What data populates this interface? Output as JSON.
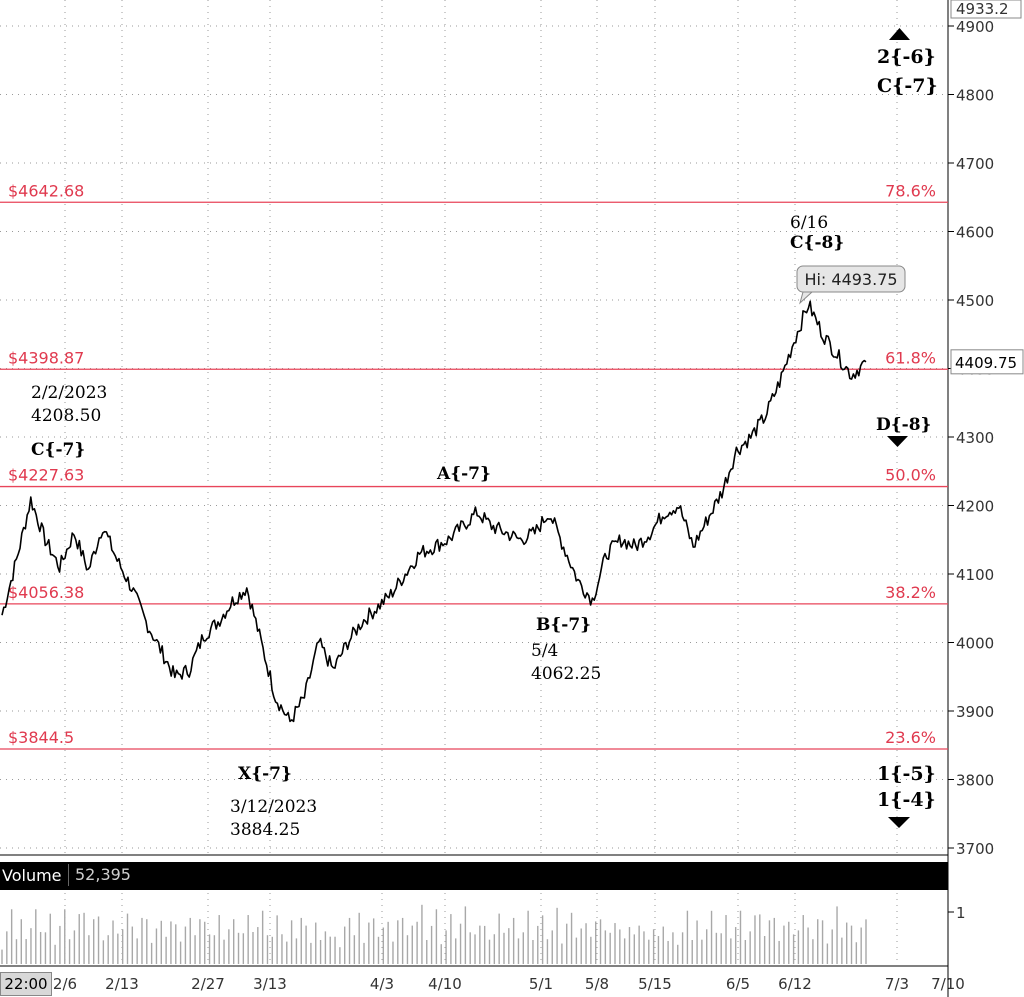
{
  "chart_data": {
    "type": "line",
    "title": "",
    "xlabel": "",
    "ylabel": "",
    "ylim": [
      3690,
      4935
    ],
    "y_ticks": [
      "4900",
      "4800",
      "4700",
      "4600",
      "4500",
      "4400",
      "4300",
      "4200",
      "4100",
      "4000",
      "3900",
      "3800",
      "3700"
    ],
    "x_ticks": [
      "2/6",
      "2/13",
      "2/27",
      "3/13",
      "4/3",
      "4/10",
      "5/1",
      "5/8",
      "5/15",
      "6/5",
      "6/12",
      "7/3",
      "7/10"
    ],
    "top_price": "4933.2",
    "last_price": "4409.75",
    "last_price_value": 4409.75,
    "hi_label": "Hi: 4493.75",
    "fib_levels": [
      {
        "price_label": "$4642.68",
        "pct_label": "78.6%",
        "value": 4642.68
      },
      {
        "price_label": "$4398.87",
        "pct_label": "61.8%",
        "value": 4398.87
      },
      {
        "price_label": "$4227.63",
        "pct_label": "50.0%",
        "value": 4227.63
      },
      {
        "price_label": "$4056.38",
        "pct_label": "38.2%",
        "value": 4056.38
      },
      {
        "price_label": "$3844.5",
        "pct_label": "23.6%",
        "value": 3844.5
      }
    ],
    "annotations": [
      {
        "text": "2/2/2023",
        "bold": false
      },
      {
        "text": "4208.50",
        "bold": false
      },
      {
        "text": "C{-7}",
        "bold": true
      },
      {
        "text": "A{-7}",
        "bold": true
      },
      {
        "text": "B{-7}",
        "bold": true
      },
      {
        "text": "5/4",
        "bold": false
      },
      {
        "text": "4062.25",
        "bold": false
      },
      {
        "text": "X{-7}",
        "bold": true
      },
      {
        "text": "3/12/2023",
        "bold": false
      },
      {
        "text": "3884.25",
        "bold": false
      },
      {
        "text": "6/16",
        "bold": false
      },
      {
        "text": "C{-8}",
        "bold": true
      },
      {
        "text": "D{-8}",
        "bold": true
      },
      {
        "text": "2{-6}",
        "bold": true
      },
      {
        "text": "C{-7}",
        "bold": true
      },
      {
        "text": "1{-5}",
        "bold": true
      },
      {
        "text": "1{-4}",
        "bold": true
      }
    ],
    "series": [
      {
        "x": [
          "1/30",
          "2/1",
          "2/2",
          "2/3",
          "2/6",
          "2/8",
          "2/10",
          "2/13",
          "2/15",
          "2/17",
          "2/21",
          "2/23",
          "2/24",
          "2/27",
          "2/28",
          "3/1",
          "3/3",
          "3/6",
          "3/8",
          "3/10",
          "3/12",
          "3/13",
          "3/15",
          "3/17",
          "3/20",
          "3/22",
          "3/24",
          "3/28",
          "3/30",
          "4/3",
          "4/5",
          "4/10",
          "4/12",
          "4/14",
          "4/18",
          "4/20",
          "4/24",
          "4/26",
          "4/28",
          "5/1",
          "5/2",
          "5/4",
          "5/8",
          "5/10",
          "5/15",
          "5/17",
          "5/19",
          "5/23",
          "5/25",
          "5/30",
          "6/1",
          "6/5",
          "6/7",
          "6/9",
          "6/12",
          "6/14",
          "6/16",
          "6/20",
          "6/22",
          "6/26",
          "6/28"
        ],
        "values": [
          4040,
          4120,
          4208.5,
          4150,
          4110,
          4160,
          4105,
          4170,
          4120,
          4080,
          4030,
          3990,
          3950,
          3960,
          4010,
          4030,
          4060,
          4080,
          4000,
          3920,
          3884.25,
          3920,
          4000,
          3960,
          4000,
          4030,
          4050,
          4070,
          4100,
          4130,
          4140,
          4150,
          4170,
          4190,
          4170,
          4160,
          4150,
          4160,
          4190,
          4140,
          4090,
          4062.25,
          4130,
          4150,
          4140,
          4160,
          4190,
          4200,
          4140,
          4180,
          4220,
          4280,
          4300,
          4330,
          4380,
          4440,
          4493.75,
          4450,
          4420,
          4390,
          4409.75
        ]
      }
    ],
    "volume": {
      "label": "Volume",
      "value": "52,395",
      "axis_tick": "1",
      "levels": [
        0.3,
        0.6,
        0.9,
        0.5,
        0.8,
        0.4,
        0.7,
        0.95,
        0.5,
        0.6,
        0.85,
        0.4,
        0.7,
        0.9,
        0.5,
        0.6,
        0.8,
        1.0,
        0.5,
        0.7,
        0.9,
        0.4,
        0.6,
        0.8,
        0.5,
        0.7,
        0.9,
        0.6,
        0.5,
        0.8,
        0.7,
        0.4,
        0.6,
        0.9,
        0.5,
        0.7,
        0.8,
        0.4,
        0.6,
        0.9,
        0.5,
        0.7,
        0.8,
        0.5,
        0.6,
        0.9,
        0.4,
        0.7,
        0.8,
        0.5,
        0.6,
        0.85,
        0.5,
        0.7,
        0.9,
        0.6,
        0.5,
        0.8,
        0.6,
        0.4,
        0.7,
        0.5,
        0.8,
        0.6,
        0.4,
        0.7,
        0.5,
        0.6,
        0.45,
        0.55
      ]
    },
    "time_label": "22:00",
    "colors": {
      "fib_line": "#e8455a",
      "fib_text": "#e03a4f",
      "price_line": "#000000",
      "grid": "#9a9a9a",
      "volume_bars": "#a8a8a8"
    },
    "grid": true,
    "legend": "none"
  }
}
